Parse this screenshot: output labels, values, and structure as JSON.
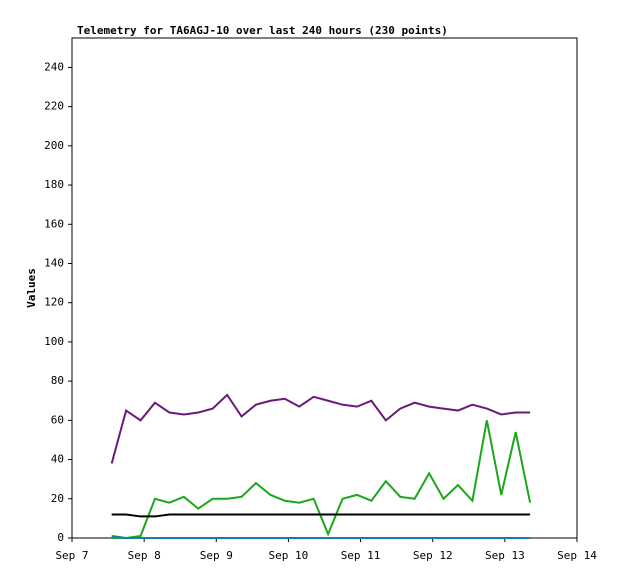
{
  "chart_data": {
    "type": "line",
    "title": "Telemetry for TA6AGJ-10 over last 240 hours (230 points)",
    "y_label": "Values",
    "x": [
      7.55,
      7.75,
      7.95,
      8.15,
      8.35,
      8.55,
      8.75,
      8.95,
      9.15,
      9.35,
      9.55,
      9.75,
      9.95,
      10.15,
      10.35,
      10.55,
      10.75,
      10.95,
      11.15,
      11.35,
      11.55,
      11.75,
      11.95,
      12.15,
      12.35,
      12.55,
      12.75,
      12.95,
      13.15,
      13.35
    ],
    "series": [
      {
        "name": "purple",
        "color": "#6a1a7a",
        "values": [
          38,
          65,
          60,
          69,
          64,
          63,
          64,
          66,
          73,
          62,
          68,
          70,
          71,
          67,
          72,
          70,
          68,
          67,
          70,
          60,
          66,
          69,
          67,
          66,
          65,
          68,
          66,
          63,
          64,
          64
        ]
      },
      {
        "name": "green",
        "color": "#1aa81a",
        "values": [
          0,
          0,
          1,
          20,
          18,
          21,
          15,
          20,
          20,
          21,
          28,
          22,
          19,
          18,
          20,
          2,
          20,
          22,
          19,
          29,
          21,
          20,
          33,
          20,
          27,
          19,
          60,
          22,
          54,
          18
        ]
      },
      {
        "name": "black",
        "color": "#000000",
        "values": [
          12,
          12,
          11,
          11,
          12,
          12,
          12,
          12,
          12,
          12,
          12,
          12,
          12,
          12,
          12,
          12,
          12,
          12,
          12,
          12,
          12,
          12,
          12,
          12,
          12,
          12,
          12,
          12,
          12,
          12
        ]
      },
      {
        "name": "blue",
        "color": "#1a7ab0",
        "values": [
          1,
          0,
          0,
          0,
          0,
          0,
          0,
          0,
          0,
          0,
          0,
          0,
          0,
          0,
          0,
          0,
          0,
          0,
          0,
          0,
          0,
          0,
          0,
          0,
          0,
          0,
          0,
          0,
          0,
          0
        ]
      }
    ],
    "xlim": [
      7,
      14
    ],
    "xticks": [
      {
        "value": 7,
        "label": "Sep 7"
      },
      {
        "value": 8,
        "label": "Sep 8"
      },
      {
        "value": 9,
        "label": "Sep 9"
      },
      {
        "value": 10,
        "label": "Sep 10"
      },
      {
        "value": 11,
        "label": "Sep 11"
      },
      {
        "value": 12,
        "label": "Sep 12"
      },
      {
        "value": 13,
        "label": "Sep 13"
      },
      {
        "value": 14,
        "label": "Sep 14"
      }
    ],
    "ylim": [
      0,
      255
    ],
    "yticks": [
      0,
      20,
      40,
      60,
      80,
      100,
      120,
      140,
      160,
      180,
      200,
      220,
      240
    ],
    "grid": false
  }
}
